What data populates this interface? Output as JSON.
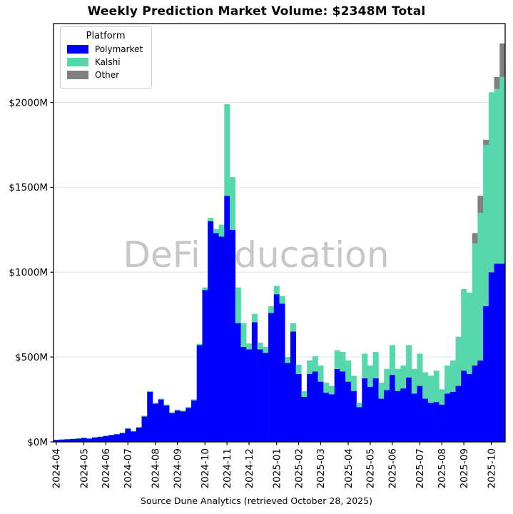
{
  "chart_data": {
    "type": "bar",
    "stacked": true,
    "title": "Weekly Prediction Market Volume: $2348M Total",
    "caption": "Source Dune Analytics (retrieved October 28, 2025)",
    "watermark": "DeFi Education",
    "legend_title": "Platform",
    "legend_position": "upper left",
    "grid": "horizontal",
    "ylim": [
      0,
      2465
    ],
    "yticks": [
      0,
      500,
      1000,
      1500,
      2000
    ],
    "ytick_labels": [
      "$0M",
      "$500M",
      "$1000M",
      "$1500M",
      "$2000M"
    ],
    "xtick_labels": [
      "2024-04",
      "2024-05",
      "2024-06",
      "2024-07",
      "2024-08",
      "2024-09",
      "2024-10",
      "2024-11",
      "2024-12",
      "2025-01",
      "2025-02",
      "2025-03",
      "2025-04",
      "2025-05",
      "2025-06",
      "2025-07",
      "2025-08",
      "2025-09",
      "2025-10"
    ],
    "colors": {
      "grid": "#e6e6e6",
      "watermark": "#c7c7c7",
      "axis": "#000000"
    },
    "weeks": [
      "2024-04-01",
      "2024-04-08",
      "2024-04-15",
      "2024-04-22",
      "2024-04-29",
      "2024-05-06",
      "2024-05-13",
      "2024-05-20",
      "2024-05-27",
      "2024-06-03",
      "2024-06-10",
      "2024-06-17",
      "2024-06-24",
      "2024-07-01",
      "2024-07-08",
      "2024-07-15",
      "2024-07-22",
      "2024-07-29",
      "2024-08-05",
      "2024-08-12",
      "2024-08-19",
      "2024-08-26",
      "2024-09-02",
      "2024-09-09",
      "2024-09-16",
      "2024-09-23",
      "2024-09-30",
      "2024-10-07",
      "2024-10-14",
      "2024-10-21",
      "2024-10-28",
      "2024-11-04",
      "2024-11-11",
      "2024-11-18",
      "2024-11-25",
      "2024-12-02",
      "2024-12-09",
      "2024-12-16",
      "2024-12-23",
      "2024-12-30",
      "2025-01-06",
      "2025-01-13",
      "2025-01-20",
      "2025-01-27",
      "2025-02-03",
      "2025-02-10",
      "2025-02-17",
      "2025-02-24",
      "2025-03-03",
      "2025-03-10",
      "2025-03-17",
      "2025-03-24",
      "2025-03-31",
      "2025-04-07",
      "2025-04-14",
      "2025-04-21",
      "2025-04-28",
      "2025-05-05",
      "2025-05-12",
      "2025-05-19",
      "2025-05-26",
      "2025-06-02",
      "2025-06-09",
      "2025-06-16",
      "2025-06-23",
      "2025-06-30",
      "2025-07-07",
      "2025-07-14",
      "2025-07-21",
      "2025-07-28",
      "2025-08-04",
      "2025-08-11",
      "2025-08-18",
      "2025-08-25",
      "2025-09-01",
      "2025-09-08",
      "2025-09-15",
      "2025-09-22",
      "2025-09-29",
      "2025-10-06",
      "2025-10-13",
      "2025-10-20"
    ],
    "series": [
      {
        "name": "Polymarket",
        "color": "#0000ff",
        "values": [
          12,
          14,
          16,
          18,
          20,
          24,
          20,
          27,
          30,
          35,
          40,
          45,
          52,
          78,
          62,
          85,
          150,
          295,
          225,
          250,
          215,
          170,
          185,
          180,
          200,
          245,
          570,
          895,
          1300,
          1230,
          1210,
          1450,
          1250,
          700,
          560,
          545,
          705,
          545,
          525,
          760,
          870,
          815,
          465,
          650,
          400,
          265,
          400,
          415,
          355,
          290,
          280,
          430,
          415,
          355,
          300,
          205,
          375,
          325,
          375,
          255,
          305,
          395,
          300,
          315,
          380,
          285,
          330,
          255,
          230,
          235,
          220,
          285,
          295,
          330,
          420,
          400,
          450,
          480,
          800,
          1000,
          1050,
          1050
        ]
      },
      {
        "name": "Kalshi",
        "color": "#56d7ac",
        "values": [
          0,
          0,
          1,
          1,
          1,
          1,
          1,
          1,
          2,
          2,
          2,
          2,
          3,
          3,
          3,
          3,
          4,
          5,
          5,
          5,
          5,
          5,
          5,
          5,
          6,
          6,
          8,
          15,
          20,
          25,
          70,
          540,
          310,
          210,
          140,
          35,
          50,
          40,
          35,
          40,
          50,
          45,
          35,
          50,
          55,
          35,
          80,
          90,
          95,
          60,
          50,
          110,
          115,
          125,
          90,
          25,
          145,
          125,
          155,
          95,
          125,
          175,
          130,
          135,
          190,
          145,
          190,
          155,
          160,
          185,
          90,
          165,
          185,
          290,
          480,
          480,
          720,
          870,
          950,
          1060,
          1030,
          1100
        ]
      },
      {
        "name": "Other",
        "color": "#808080",
        "values": [
          0,
          0,
          0,
          0,
          0,
          0,
          0,
          0,
          0,
          0,
          0,
          0,
          0,
          0,
          0,
          0,
          0,
          0,
          0,
          0,
          0,
          0,
          0,
          0,
          0,
          0,
          0,
          0,
          0,
          0,
          0,
          0,
          0,
          0,
          0,
          0,
          0,
          0,
          0,
          0,
          0,
          0,
          0,
          0,
          0,
          0,
          0,
          0,
          0,
          0,
          0,
          0,
          0,
          0,
          0,
          0,
          0,
          0,
          0,
          0,
          0,
          0,
          0,
          0,
          0,
          0,
          0,
          0,
          0,
          0,
          0,
          0,
          0,
          0,
          0,
          0,
          60,
          100,
          30,
          0,
          70,
          198
        ]
      }
    ]
  }
}
